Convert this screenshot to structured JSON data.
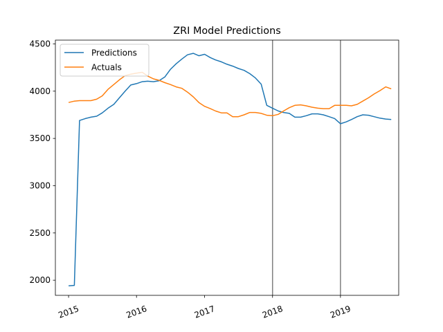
{
  "chart_data": {
    "type": "line",
    "title": "ZRI Model Predictions",
    "xlabel": "",
    "ylabel": "",
    "x_axis": "date",
    "xlim": [
      "2014-10-22",
      "2019-11-10"
    ],
    "ylim": [
      1840,
      4540
    ],
    "x_ticks": [
      {
        "date": "2015-01-01",
        "label": "2015"
      },
      {
        "date": "2016-01-01",
        "label": "2016"
      },
      {
        "date": "2017-01-01",
        "label": "2017"
      },
      {
        "date": "2018-01-01",
        "label": "2018"
      },
      {
        "date": "2019-01-01",
        "label": "2019"
      }
    ],
    "y_ticks": [
      2000,
      2500,
      3000,
      3500,
      4000,
      4500
    ],
    "grid": false,
    "legend": "top-left",
    "vertical_lines": [
      "2018-01-01",
      "2019-01-01"
    ],
    "vertical_line_color": "#808080",
    "series": [
      {
        "name": "Predictions",
        "color": "#1f77b4",
        "x": [
          "2015-01-01",
          "2015-02-01",
          "2015-03-01",
          "2015-04-01",
          "2015-05-01",
          "2015-06-01",
          "2015-07-01",
          "2015-08-01",
          "2015-09-01",
          "2015-10-01",
          "2015-11-01",
          "2015-12-01",
          "2016-01-01",
          "2016-02-01",
          "2016-03-01",
          "2016-04-01",
          "2016-05-01",
          "2016-06-01",
          "2016-07-01",
          "2016-08-01",
          "2016-09-01",
          "2016-10-01",
          "2016-11-01",
          "2016-12-01",
          "2017-01-01",
          "2017-02-01",
          "2017-03-01",
          "2017-04-01",
          "2017-05-01",
          "2017-06-01",
          "2017-07-01",
          "2017-08-01",
          "2017-09-01",
          "2017-10-01",
          "2017-11-01",
          "2017-12-01",
          "2018-01-01",
          "2018-02-01",
          "2018-03-01",
          "2018-04-01",
          "2018-05-01",
          "2018-06-01",
          "2018-07-01",
          "2018-08-01",
          "2018-09-01",
          "2018-10-01",
          "2018-11-01",
          "2018-12-01",
          "2019-01-01",
          "2019-02-01",
          "2019-03-01",
          "2019-04-01",
          "2019-05-01",
          "2019-06-01",
          "2019-07-01",
          "2019-08-01",
          "2019-09-01",
          "2019-10-01"
        ],
        "values": [
          1940,
          1945,
          3690,
          3710,
          3725,
          3735,
          3770,
          3820,
          3860,
          3930,
          4000,
          4065,
          4080,
          4100,
          4105,
          4100,
          4110,
          4150,
          4230,
          4290,
          4340,
          4385,
          4400,
          4375,
          4390,
          4355,
          4330,
          4310,
          4285,
          4265,
          4240,
          4220,
          4185,
          4140,
          4075,
          3850,
          3820,
          3790,
          3775,
          3765,
          3725,
          3725,
          3740,
          3760,
          3760,
          3750,
          3730,
          3710,
          3655,
          3675,
          3700,
          3730,
          3750,
          3745,
          3730,
          3715,
          3705,
          3700
        ]
      },
      {
        "name": "Actuals",
        "color": "#ff7f0e",
        "x": [
          "2015-01-01",
          "2015-02-01",
          "2015-03-01",
          "2015-04-01",
          "2015-05-01",
          "2015-06-01",
          "2015-07-01",
          "2015-08-01",
          "2015-09-01",
          "2015-10-01",
          "2015-11-01",
          "2015-12-01",
          "2016-01-01",
          "2016-02-01",
          "2016-03-01",
          "2016-04-01",
          "2016-05-01",
          "2016-06-01",
          "2016-07-01",
          "2016-08-01",
          "2016-09-01",
          "2016-10-01",
          "2016-11-01",
          "2016-12-01",
          "2017-01-01",
          "2017-02-01",
          "2017-03-01",
          "2017-04-01",
          "2017-05-01",
          "2017-06-01",
          "2017-07-01",
          "2017-08-01",
          "2017-09-01",
          "2017-10-01",
          "2017-11-01",
          "2017-12-01",
          "2018-01-01",
          "2018-02-01",
          "2018-03-01",
          "2018-04-01",
          "2018-05-01",
          "2018-06-01",
          "2018-07-01",
          "2018-08-01",
          "2018-09-01",
          "2018-10-01",
          "2018-11-01",
          "2018-12-01",
          "2019-01-01",
          "2019-02-01",
          "2019-03-01",
          "2019-04-01",
          "2019-05-01",
          "2019-06-01",
          "2019-07-01",
          "2019-08-01",
          "2019-09-01",
          "2019-10-01"
        ],
        "values": [
          3880,
          3895,
          3900,
          3900,
          3900,
          3915,
          3950,
          4020,
          4070,
          4120,
          4165,
          4180,
          4190,
          4200,
          4160,
          4130,
          4115,
          4090,
          4070,
          4045,
          4030,
          3990,
          3940,
          3880,
          3840,
          3815,
          3790,
          3770,
          3770,
          3730,
          3730,
          3750,
          3775,
          3775,
          3765,
          3745,
          3740,
          3755,
          3790,
          3825,
          3850,
          3855,
          3845,
          3830,
          3820,
          3815,
          3815,
          3850,
          3850,
          3850,
          3845,
          3860,
          3895,
          3930,
          3970,
          4005,
          4045,
          4025
        ]
      }
    ]
  }
}
